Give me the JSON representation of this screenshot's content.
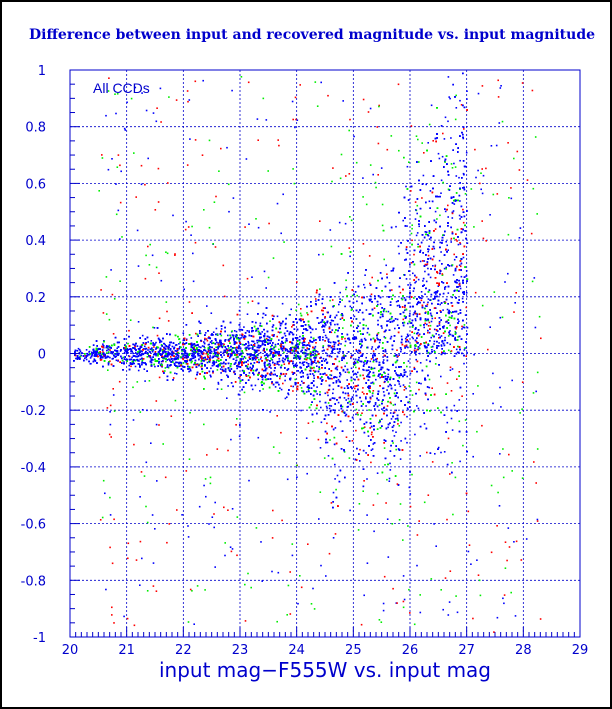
{
  "chart_data": {
    "type": "scatter",
    "title": "Difference between input and recovered magnitude vs. input magnitude",
    "xlabel": "input mag−F555W vs. input mag",
    "ylabel": "",
    "annotation": "All CCDs",
    "xlim": [
      20,
      29
    ],
    "ylim": [
      -1,
      1
    ],
    "x_ticks": [
      "20",
      "21",
      "22",
      "23",
      "24",
      "25",
      "26",
      "27",
      "28",
      "29"
    ],
    "y_ticks": [
      "-1",
      "-0.8",
      "-0.6",
      "-0.4",
      "-0.2",
      "0",
      "0.2",
      "0.4",
      "0.6",
      "0.8",
      "1"
    ],
    "grid": true,
    "series_colors": [
      "#ff0000",
      "#00ee00",
      "#0000ff"
    ],
    "background": "#ffffff",
    "frame_color": "#0000cc",
    "distribution": {
      "x_min": 20.0,
      "x_cutoff": 27.0,
      "center_y": 0.0,
      "spread_at_20": 0.02,
      "spread_at_24": 0.12,
      "spread_at_25_5": 0.3,
      "negative_tail_min_y_near_25_5": -0.6,
      "positive_spread_near_27": 1.0
    }
  }
}
